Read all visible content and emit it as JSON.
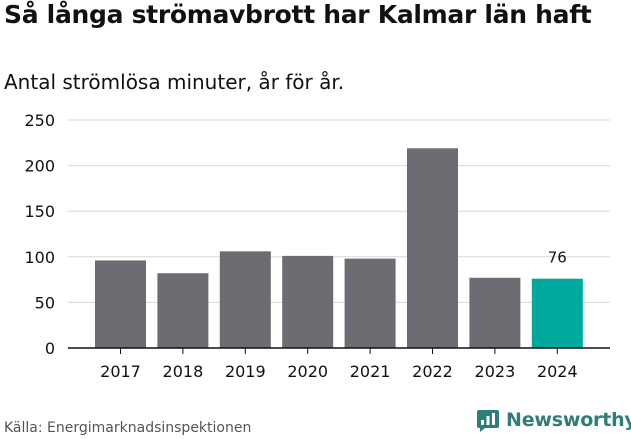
{
  "title": "Så långa strömavbrott har Kalmar län haft",
  "subtitle": "Antal strömlösa minuter, år för år.",
  "source": "Källa: Energimarknadsinspektionen",
  "brand": "Newsworthy",
  "colors": {
    "bar": "#6e6c72",
    "highlight": "#00a99d",
    "grid": "#d9d9d9",
    "axis": "#111111",
    "brand": "#2f7d78"
  },
  "chart_data": {
    "type": "bar",
    "title": "Så långa strömavbrott har Kalmar län haft",
    "subtitle": "Antal strömlösa minuter, år för år.",
    "xlabel": "",
    "ylabel": "",
    "categories": [
      "2017",
      "2018",
      "2019",
      "2020",
      "2021",
      "2022",
      "2023",
      "2024"
    ],
    "values": [
      96,
      82,
      106,
      101,
      98,
      219,
      77,
      76
    ],
    "highlight_index": 7,
    "data_labels": [
      {
        "index": 7,
        "text": "76"
      }
    ],
    "ylim": [
      0,
      250
    ],
    "yticks": [
      0,
      50,
      100,
      150,
      200,
      250
    ],
    "grid": true,
    "legend": "none"
  }
}
